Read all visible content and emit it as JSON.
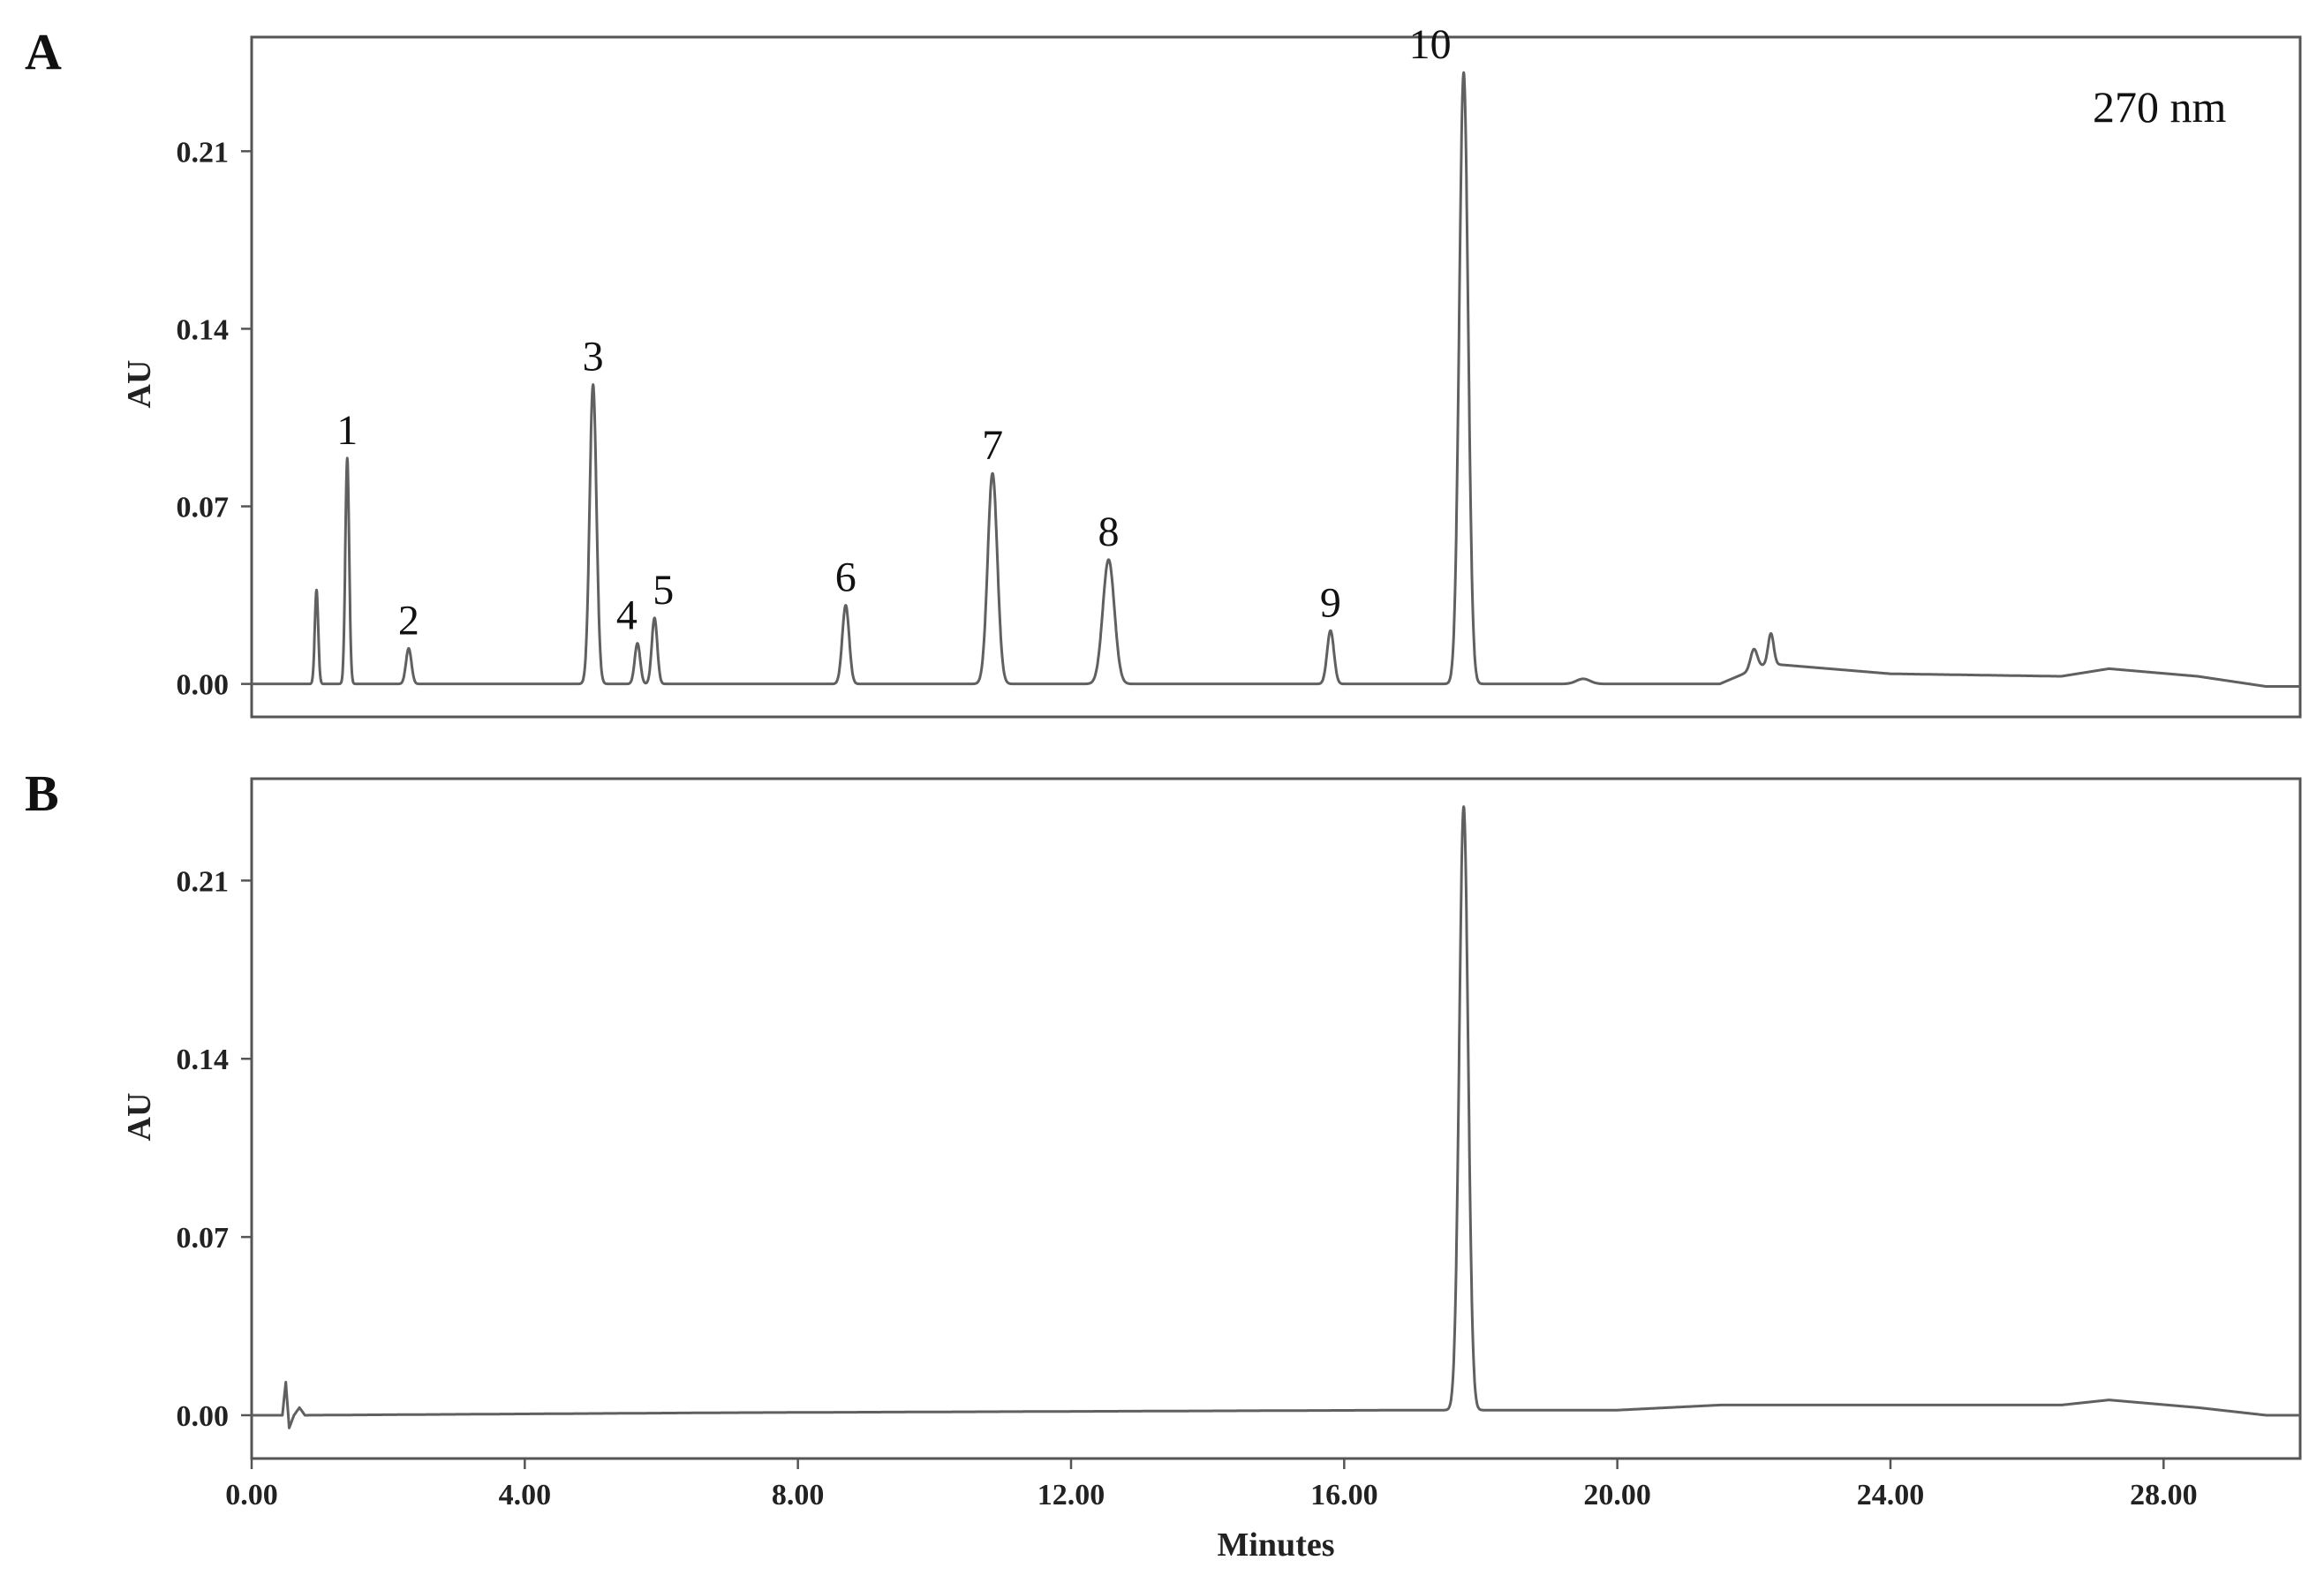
{
  "chart_data": [
    {
      "type": "line",
      "panel": "A",
      "annotation": "270 nm",
      "xlabel": "",
      "ylabel": "AU",
      "xlim": [
        0,
        30
      ],
      "ylim": [
        -0.013,
        0.255
      ],
      "yticks": [
        0.0,
        0.07,
        0.14,
        0.21
      ],
      "ytick_labels": [
        "0.00",
        "0.07",
        "0.14",
        "0.21"
      ],
      "xticks": [],
      "xtick_labels": [],
      "grid": false,
      "peaks": [
        {
          "label": "",
          "time": 0.95,
          "height": 0.037,
          "width": 0.025
        },
        {
          "label": "1",
          "time": 1.4,
          "height": 0.089,
          "width": 0.028
        },
        {
          "label": "2",
          "time": 2.3,
          "height": 0.014,
          "width": 0.04
        },
        {
          "label": "3",
          "time": 5.0,
          "height": 0.118,
          "width": 0.05
        },
        {
          "label": "4",
          "time": 5.65,
          "height": 0.016,
          "width": 0.04
        },
        {
          "label": "5",
          "time": 5.9,
          "height": 0.026,
          "width": 0.04
        },
        {
          "label": "6",
          "time": 8.7,
          "height": 0.031,
          "width": 0.05
        },
        {
          "label": "7",
          "time": 10.85,
          "height": 0.083,
          "width": 0.07
        },
        {
          "label": "8",
          "time": 12.55,
          "height": 0.049,
          "width": 0.085
        },
        {
          "label": "9",
          "time": 15.8,
          "height": 0.021,
          "width": 0.05
        },
        {
          "label": "10",
          "time": 17.75,
          "height": 0.241,
          "width": 0.065
        },
        {
          "label": "",
          "time": 19.5,
          "height": 0.002,
          "width": 0.1
        },
        {
          "label": "",
          "time": 22.0,
          "height": 0.008,
          "width": 0.05
        },
        {
          "label": "",
          "time": 22.25,
          "height": 0.012,
          "width": 0.04
        }
      ],
      "baseline": [
        [
          0,
          0.0
        ],
        [
          21.5,
          0.0
        ],
        [
          22.2,
          0.008
        ],
        [
          24,
          0.004
        ],
        [
          26.5,
          0.003
        ],
        [
          27.2,
          0.006
        ],
        [
          28.5,
          0.003
        ],
        [
          29.5,
          -0.001
        ],
        [
          30,
          -0.001
        ]
      ]
    },
    {
      "type": "line",
      "panel": "B",
      "xlabel": "Minutes",
      "ylabel": "AU",
      "xlim": [
        0,
        30
      ],
      "ylim": [
        -0.017,
        0.25
      ],
      "yticks": [
        0.0,
        0.07,
        0.14,
        0.21
      ],
      "ytick_labels": [
        "0.00",
        "0.07",
        "0.14",
        "0.21"
      ],
      "xticks": [
        0,
        4,
        8,
        12,
        16,
        20,
        24,
        28
      ],
      "xtick_labels": [
        "0.00",
        "4.00",
        "8.00",
        "12.00",
        "16.00",
        "20.00",
        "24.00",
        "28.00"
      ],
      "grid": false,
      "peaks": [
        {
          "label": "",
          "time": 17.75,
          "height": 0.237,
          "width": 0.065
        }
      ],
      "baseline": [
        [
          0,
          0.0
        ],
        [
          0.45,
          0.0
        ],
        [
          0.5,
          0.013
        ],
        [
          0.55,
          -0.005
        ],
        [
          0.62,
          0.0
        ],
        [
          0.7,
          0.003
        ],
        [
          0.78,
          0.0
        ],
        [
          7,
          0.001
        ],
        [
          17,
          0.002
        ],
        [
          20,
          0.002
        ],
        [
          21.5,
          0.004
        ],
        [
          26.5,
          0.004
        ],
        [
          27.2,
          0.006
        ],
        [
          28.5,
          0.003
        ],
        [
          29.5,
          0.0
        ],
        [
          30,
          0.0
        ]
      ]
    }
  ]
}
